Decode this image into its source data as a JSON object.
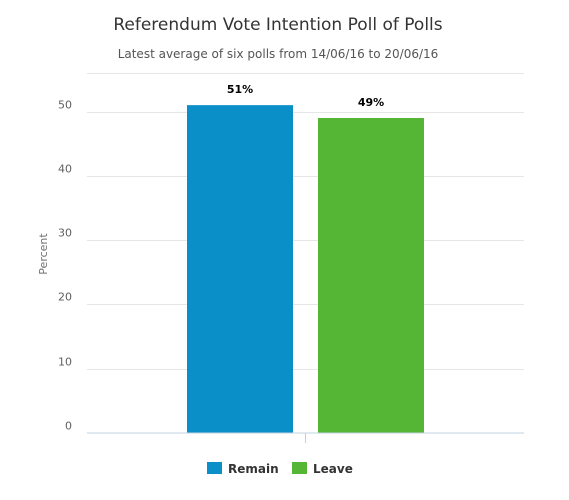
{
  "chart_data": {
    "type": "bar",
    "title": "Referendum Vote Intention Poll of Polls",
    "subtitle": "Latest average of six polls from 14/06/16 to 20/06/16",
    "ylabel": "Percent",
    "xlabel": "",
    "ylim": [
      0,
      56
    ],
    "yticks": [
      0,
      10,
      20,
      30,
      40,
      50
    ],
    "grid": true,
    "legend_position": "bottom",
    "series": [
      {
        "name": "Remain",
        "value": 51,
        "label": "51%",
        "color": "#0a8fc9"
      },
      {
        "name": "Leave",
        "value": 49,
        "label": "49%",
        "color": "#55b535"
      }
    ]
  }
}
